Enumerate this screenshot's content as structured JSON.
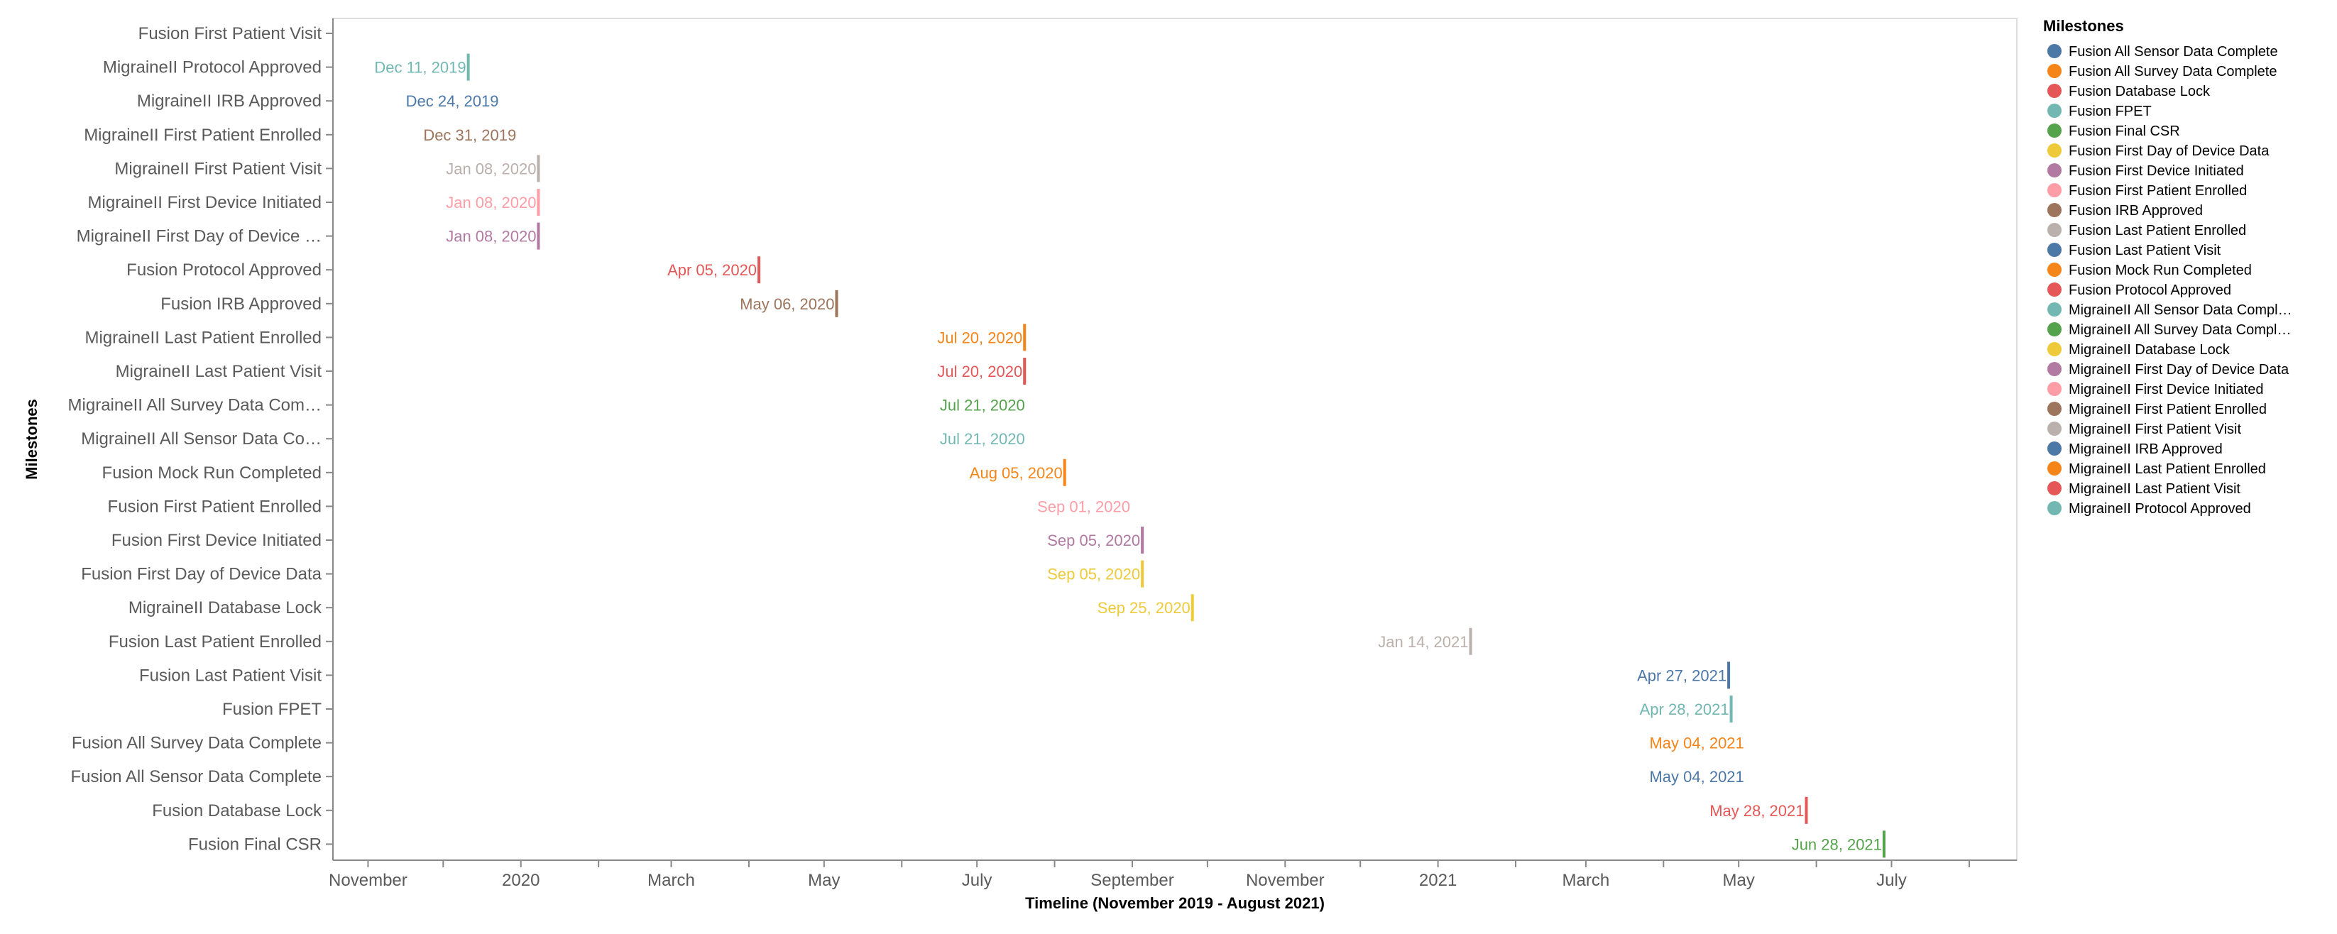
{
  "chart_data": {
    "type": "scatter",
    "title": "",
    "xlabel": "Timeline (November 2019 - August 2021)",
    "ylabel": "Milestones",
    "xlim": [
      "2019-10-18",
      "2021-08-20"
    ],
    "x_ticks": [
      {
        "date": "2019-11-01",
        "label": "November"
      },
      {
        "date": "2020-01-01",
        "label": "2020"
      },
      {
        "date": "2020-03-01",
        "label": "March"
      },
      {
        "date": "2020-05-01",
        "label": "May"
      },
      {
        "date": "2020-07-01",
        "label": "July"
      },
      {
        "date": "2020-09-01",
        "label": "September"
      },
      {
        "date": "2020-11-01",
        "label": "November"
      },
      {
        "date": "2021-01-01",
        "label": "2021"
      },
      {
        "date": "2021-03-01",
        "label": "March"
      },
      {
        "date": "2021-05-01",
        "label": "May"
      },
      {
        "date": "2021-07-01",
        "label": "July"
      }
    ],
    "x_minor_ticks": [
      "2019-12-01",
      "2020-02-01",
      "2020-04-01",
      "2020-06-01",
      "2020-08-01",
      "2020-10-01",
      "2020-12-01",
      "2021-02-01",
      "2021-04-01",
      "2021-06-01",
      "2021-08-01"
    ],
    "grid": false,
    "legend": {
      "title": "Milestones",
      "placement": "right",
      "entries": [
        {
          "name": "Fusion All Sensor Data Complete",
          "color": "#4c78a8"
        },
        {
          "name": "Fusion All Survey Data Complete",
          "color": "#f58518"
        },
        {
          "name": "Fusion Database Lock",
          "color": "#e45756"
        },
        {
          "name": "Fusion FPET",
          "color": "#72b7b2"
        },
        {
          "name": "Fusion Final CSR",
          "color": "#54a24b"
        },
        {
          "name": "Fusion First Day of Device Data",
          "color": "#eeca3b"
        },
        {
          "name": "Fusion First Device Initiated",
          "color": "#b279a2"
        },
        {
          "name": "Fusion First Patient Enrolled",
          "color": "#ff9da6"
        },
        {
          "name": "Fusion IRB Approved",
          "color": "#9d755d"
        },
        {
          "name": "Fusion Last Patient Enrolled",
          "color": "#bab0ac"
        },
        {
          "name": "Fusion Last Patient Visit",
          "color": "#4c78a8"
        },
        {
          "name": "Fusion Mock Run Completed",
          "color": "#f58518"
        },
        {
          "name": "Fusion Protocol Approved",
          "color": "#e45756"
        },
        {
          "name": "MigraineII All Sensor Data Compl…",
          "color": "#72b7b2"
        },
        {
          "name": "MigraineII All Survey Data Compl…",
          "color": "#54a24b"
        },
        {
          "name": "MigraineII Database Lock",
          "color": "#eeca3b"
        },
        {
          "name": "MigraineII First Day of Device Data",
          "color": "#b279a2"
        },
        {
          "name": "MigraineII First Device Initiated",
          "color": "#ff9da6"
        },
        {
          "name": "MigraineII First Patient Enrolled",
          "color": "#9d755d"
        },
        {
          "name": "MigraineII First Patient Visit",
          "color": "#bab0ac"
        },
        {
          "name": "MigraineII IRB Approved",
          "color": "#4c78a8"
        },
        {
          "name": "MigraineII Last Patient Enrolled",
          "color": "#f58518"
        },
        {
          "name": "MigraineII Last Patient Visit",
          "color": "#e45756"
        },
        {
          "name": "MigraineII Protocol Approved",
          "color": "#72b7b2"
        }
      ]
    },
    "categories": [
      "Fusion First Patient Visit",
      "MigraineII Protocol Approved",
      "MigraineII IRB Approved",
      "MigraineII First Patient Enrolled",
      "MigraineII First Patient Visit",
      "MigraineII First Device Initiated",
      "MigraineII First Day of Device …",
      "Fusion Protocol Approved",
      "Fusion IRB Approved",
      "MigraineII Last Patient Enrolled",
      "MigraineII Last Patient Visit",
      "MigraineII All Survey Data Com…",
      "MigraineII All Sensor Data Co…",
      "Fusion Mock Run Completed",
      "Fusion First Patient Enrolled",
      "Fusion First Device Initiated",
      "Fusion First Day of Device Data",
      "MigraineII Database Lock",
      "Fusion Last Patient Enrolled",
      "Fusion Last Patient Visit",
      "Fusion FPET",
      "Fusion All Survey Data Complete",
      "Fusion All Sensor Data Complete",
      "Fusion Database Lock",
      "Fusion Final CSR"
    ],
    "points": [
      {
        "row": 1,
        "date": "2019-12-11",
        "label": "Dec 11, 2019",
        "color": "#72b7b2",
        "tick": true
      },
      {
        "row": 2,
        "date": "2019-12-24",
        "label": "Dec 24, 2019",
        "color": "#4c78a8",
        "tick": false
      },
      {
        "row": 3,
        "date": "2019-12-31",
        "label": "Dec 31, 2019",
        "color": "#9d755d",
        "tick": false
      },
      {
        "row": 4,
        "date": "2020-01-08",
        "label": "Jan 08, 2020",
        "color": "#bab0ac",
        "tick": true
      },
      {
        "row": 5,
        "date": "2020-01-08",
        "label": "Jan 08, 2020",
        "color": "#ff9da6",
        "tick": true
      },
      {
        "row": 6,
        "date": "2020-01-08",
        "label": "Jan 08, 2020",
        "color": "#b279a2",
        "tick": true
      },
      {
        "row": 7,
        "date": "2020-04-05",
        "label": "Apr 05, 2020",
        "color": "#e45756",
        "tick": true
      },
      {
        "row": 8,
        "date": "2020-05-06",
        "label": "May 06, 2020",
        "color": "#9d755d",
        "tick": true
      },
      {
        "row": 9,
        "date": "2020-07-20",
        "label": "Jul 20, 2020",
        "color": "#f58518",
        "tick": true
      },
      {
        "row": 10,
        "date": "2020-07-20",
        "label": "Jul 20, 2020",
        "color": "#e45756",
        "tick": true
      },
      {
        "row": 11,
        "date": "2020-07-21",
        "label": "Jul 21, 2020",
        "color": "#54a24b",
        "tick": false
      },
      {
        "row": 12,
        "date": "2020-07-21",
        "label": "Jul 21, 2020",
        "color": "#72b7b2",
        "tick": false
      },
      {
        "row": 13,
        "date": "2020-08-05",
        "label": "Aug 05, 2020",
        "color": "#f58518",
        "tick": true
      },
      {
        "row": 14,
        "date": "2020-09-01",
        "label": "Sep 01, 2020",
        "color": "#ff9da6",
        "tick": false
      },
      {
        "row": 15,
        "date": "2020-09-05",
        "label": "Sep 05, 2020",
        "color": "#b279a2",
        "tick": true
      },
      {
        "row": 16,
        "date": "2020-09-05",
        "label": "Sep 05, 2020",
        "color": "#eeca3b",
        "tick": true
      },
      {
        "row": 17,
        "date": "2020-09-25",
        "label": "Sep 25, 2020",
        "color": "#eeca3b",
        "tick": true
      },
      {
        "row": 18,
        "date": "2021-01-14",
        "label": "Jan 14, 2021",
        "color": "#bab0ac",
        "tick": true
      },
      {
        "row": 19,
        "date": "2021-04-27",
        "label": "Apr 27, 2021",
        "color": "#4c78a8",
        "tick": true
      },
      {
        "row": 20,
        "date": "2021-04-28",
        "label": "Apr 28, 2021",
        "color": "#72b7b2",
        "tick": true
      },
      {
        "row": 21,
        "date": "2021-05-04",
        "label": "May 04, 2021",
        "color": "#f58518",
        "tick": false
      },
      {
        "row": 22,
        "date": "2021-05-04",
        "label": "May 04, 2021",
        "color": "#4c78a8",
        "tick": false
      },
      {
        "row": 23,
        "date": "2021-05-28",
        "label": "May 28, 2021",
        "color": "#e45756",
        "tick": true
      },
      {
        "row": 24,
        "date": "2021-06-28",
        "label": "Jun 28, 2021",
        "color": "#54a24b",
        "tick": true
      }
    ]
  }
}
